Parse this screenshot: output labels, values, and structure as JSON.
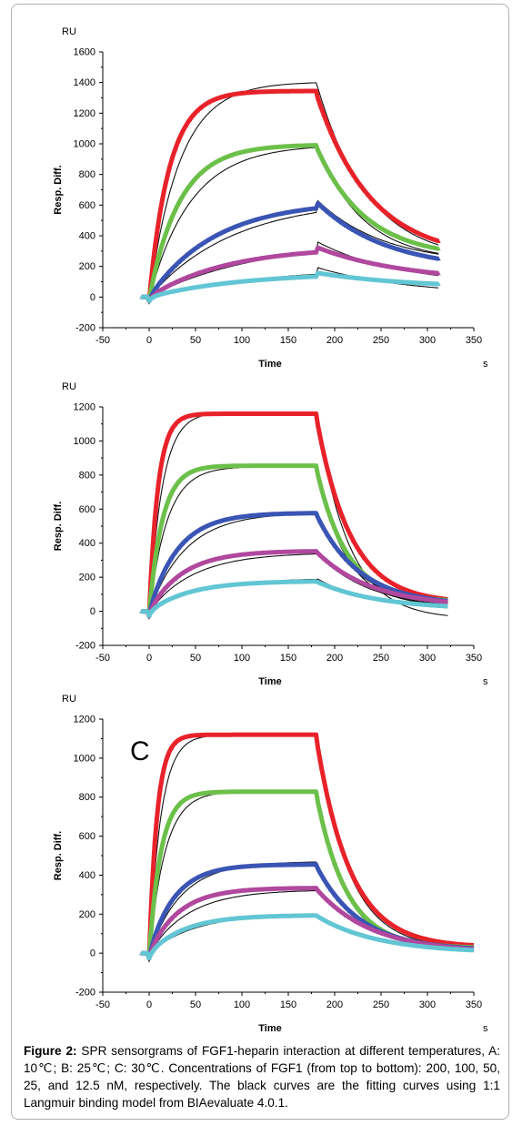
{
  "chart_data": [
    {
      "type": "line",
      "panel": "",
      "ylabel": "Resp. Diff.",
      "yunit": "RU",
      "xlabel": "Time",
      "xunit": "s",
      "xlim": [
        -50,
        350
      ],
      "ylim": [
        -200,
        1600
      ],
      "xticks": [
        -50,
        0,
        50,
        100,
        150,
        200,
        250,
        300,
        350
      ],
      "yticks": [
        -200,
        0,
        200,
        400,
        600,
        800,
        1000,
        1200,
        1400,
        1600
      ],
      "injection_end_s": 180,
      "end_s": 312,
      "series": [
        {
          "concentration_nM": 200,
          "color": "#e8222a",
          "data_plateau": 1345,
          "data_end": 365,
          "fit_peak": 1405,
          "fit_end": 340
        },
        {
          "concentration_nM": 100,
          "color": "#6cc04a",
          "data_plateau": 995,
          "data_end": 315,
          "fit_peak": 995,
          "fit_end": 285
        },
        {
          "concentration_nM": 50,
          "color": "#3a55b4",
          "data_plateau": 630,
          "data_end": 250,
          "fit_peak": 640,
          "fit_end": 280
        },
        {
          "concentration_nM": 25,
          "color": "#b0489e",
          "data_plateau": 330,
          "data_end": 155,
          "fit_peak": 365,
          "fit_end": 140
        },
        {
          "concentration_nM": 12.5,
          "color": "#62c6d4",
          "data_plateau": 160,
          "data_end": 85,
          "fit_peak": 195,
          "fit_end": 60
        }
      ]
    },
    {
      "type": "line",
      "panel": "",
      "ylabel": "Resp. Diff.",
      "yunit": "RU",
      "xlabel": "Time",
      "xunit": "s",
      "xlim": [
        -50,
        350
      ],
      "ylim": [
        -200,
        1200
      ],
      "xticks": [
        -50,
        0,
        50,
        100,
        150,
        200,
        250,
        300,
        350
      ],
      "yticks": [
        -200,
        0,
        200,
        400,
        600,
        800,
        1000,
        1200
      ],
      "injection_end_s": 180,
      "end_s": 322,
      "series": [
        {
          "concentration_nM": 200,
          "color": "#e8222a",
          "data_plateau": 1160,
          "data_end": 70,
          "fit_peak": 1170,
          "fit_end": -25
        },
        {
          "concentration_nM": 100,
          "color": "#6cc04a",
          "data_plateau": 855,
          "data_end": 65,
          "fit_peak": 850,
          "fit_end": 40
        },
        {
          "concentration_nM": 50,
          "color": "#3a55b4",
          "data_plateau": 578,
          "data_end": 60,
          "fit_peak": 580,
          "fit_end": 45
        },
        {
          "concentration_nM": 25,
          "color": "#b0489e",
          "data_plateau": 355,
          "data_end": 55,
          "fit_peak": 345,
          "fit_end": 40
        },
        {
          "concentration_nM": 12.5,
          "color": "#62c6d4",
          "data_plateau": 178,
          "data_end": 30,
          "fit_peak": 195,
          "fit_end": 20
        }
      ]
    },
    {
      "type": "line",
      "panel": "C",
      "ylabel": "Resp. Diff.",
      "yunit": "RU",
      "xlabel": "Time",
      "xunit": "s",
      "xlim": [
        -50,
        350
      ],
      "ylim": [
        -200,
        1200
      ],
      "xticks": [
        -50,
        0,
        50,
        100,
        150,
        200,
        250,
        300,
        350
      ],
      "yticks": [
        -200,
        0,
        200,
        400,
        600,
        800,
        1000,
        1200
      ],
      "injection_end_s": 180,
      "end_s": 350,
      "series": [
        {
          "concentration_nM": 200,
          "color": "#e8222a",
          "data_plateau": 1120,
          "data_end": 40,
          "fit_peak": 1120,
          "fit_end": 30
        },
        {
          "concentration_nM": 100,
          "color": "#6cc04a",
          "data_plateau": 828,
          "data_end": 30,
          "fit_peak": 830,
          "fit_end": 25
        },
        {
          "concentration_nM": 50,
          "color": "#3a55b4",
          "data_plateau": 455,
          "data_end": 25,
          "fit_peak": 470,
          "fit_end": 25
        },
        {
          "concentration_nM": 25,
          "color": "#b0489e",
          "data_plateau": 335,
          "data_end": 20,
          "fit_peak": 325,
          "fit_end": 20
        },
        {
          "concentration_nM": 12.5,
          "color": "#62c6d4",
          "data_plateau": 195,
          "data_end": 15,
          "fit_peak": 200,
          "fit_end": 15
        }
      ]
    }
  ],
  "caption": {
    "label": "Figure 2:",
    "text": " SPR sensorgrams of FGF1-heparin interaction at different temperatures, A: 10℃; B: 25℃; C: 30℃. Concentrations of FGF1 (from top to bottom): 200, 100, 50, 25, and 12.5 nM, respectively. The black curves are the fitting curves using 1:1 Langmuir binding model from BIAevaluate 4.0.1."
  }
}
